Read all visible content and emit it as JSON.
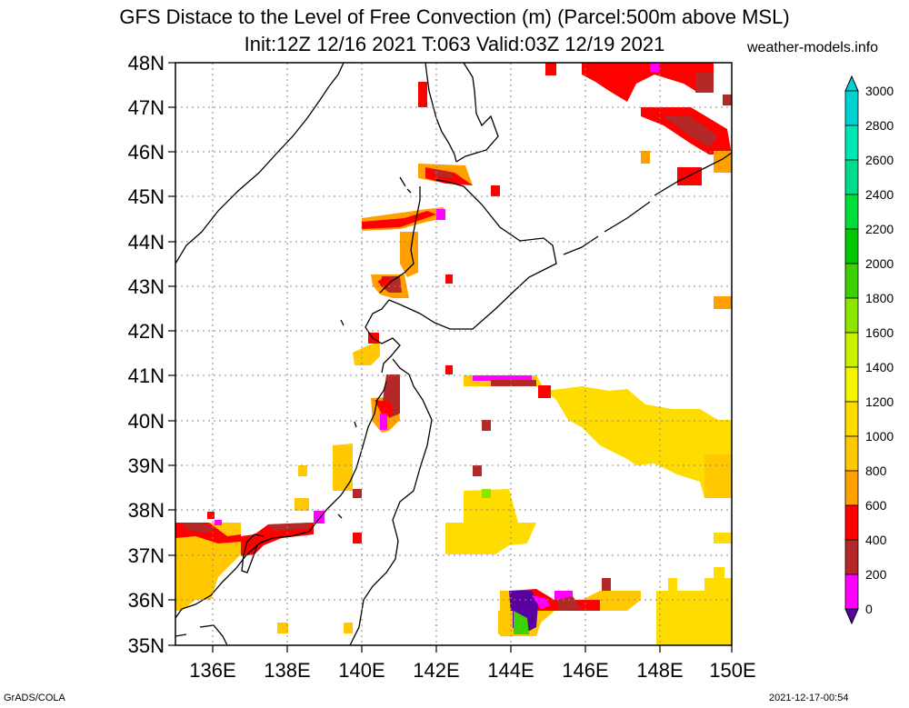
{
  "title_line1": "GFS Distace to the Level of Free Convection (m) (Parcel:500m above MSL)",
  "title_line2": "Init:12Z 12/16 2021 T:063 Valid:03Z 12/19 2021",
  "site": "weather-models.info",
  "footer_left": "GrADS/COLA",
  "footer_right": "2021-12-17-00:54",
  "lat_labels": [
    "48N",
    "47N",
    "46N",
    "45N",
    "44N",
    "43N",
    "42N",
    "41N",
    "40N",
    "39N",
    "38N",
    "37N",
    "36N",
    "35N"
  ],
  "lon_labels": [
    "136E",
    "138E",
    "140E",
    "142E",
    "144E",
    "146E",
    "148E",
    "150E"
  ],
  "colorbar": {
    "labels": [
      "3000",
      "2800",
      "2600",
      "2400",
      "2200",
      "2000",
      "1800",
      "1600",
      "1400",
      "1200",
      "1000",
      "800",
      "600",
      "400",
      "200",
      "0"
    ],
    "colors": [
      "#00d2d2",
      "#00e6b4",
      "#00dc8c",
      "#00dc3c",
      "#00c800",
      "#3cd200",
      "#8ce600",
      "#c8f000",
      "#f5f500",
      "#ffdc00",
      "#ffc800",
      "#ffa000",
      "#ff0000",
      "#b42828",
      "#ff00ff",
      "#5a00a0"
    ]
  },
  "legend": {
    "colors": {
      "c600": "#ffa000",
      "c800": "#ffc800",
      "c1000": "#ffdc00",
      "c400": "#b42828",
      "c200": "#ff00ff",
      "c0": "#5a00a0",
      "red": "#ff0000",
      "green": "#3cd200"
    }
  }
}
